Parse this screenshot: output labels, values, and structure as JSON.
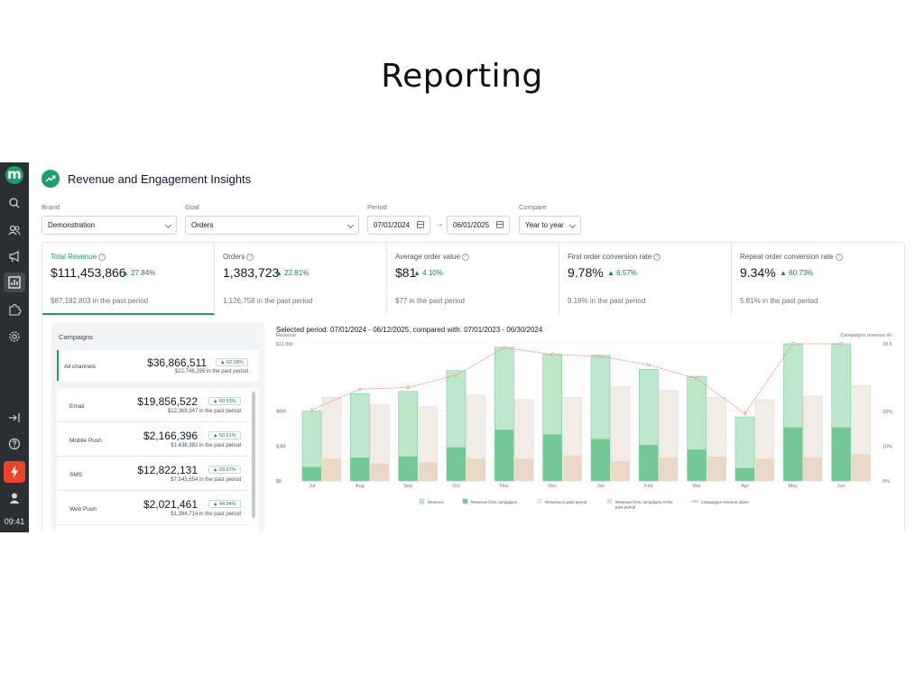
{
  "slide_title": "Reporting",
  "sidebar": {
    "logo": "m",
    "time": "09:41",
    "icons": [
      "search-icon",
      "users-icon",
      "megaphone-icon",
      "reports-icon",
      "puzzle-icon",
      "settings-icon",
      "logout-icon",
      "help-icon",
      "flash-icon",
      "profile-icon"
    ]
  },
  "header": {
    "title": "Revenue and Engagement Insights"
  },
  "filters": {
    "brand_label": "Brand",
    "brand_value": "Demonstration",
    "goal_label": "Goal",
    "goal_value": "Orders",
    "period_label": "Period",
    "period_start": "07/01/2024",
    "period_end": "06/01/2025",
    "compare_label": "Compare",
    "compare_value": "Year to year"
  },
  "kpis": [
    {
      "name": "Total Revenue",
      "value": "$111,453,866",
      "change": "27.84%",
      "past": "$87,182,803 in the past period"
    },
    {
      "name": "Orders",
      "value": "1,383,723",
      "change": "22.81%",
      "past": "1,126,758 in the past period"
    },
    {
      "name": "Average order value",
      "value": "$81",
      "change": "4.10%",
      "past": "$77 in the past period"
    },
    {
      "name": "First order conversion rate",
      "value": "9.78%",
      "change": "6.57%",
      "past": "9.18% in the past period"
    },
    {
      "name": "Repeat order conversion rate",
      "value": "9.34%",
      "change": "60.73%",
      "past": "5.81% in the past period"
    }
  ],
  "campaigns": {
    "title": "Campaigns",
    "all": {
      "name": "All channels",
      "value": "$36,866,511",
      "change": "62.08%",
      "past": "$22,746,295 in the past period"
    },
    "channels": [
      {
        "name": "Email",
        "value": "$19,856,522",
        "change": "60.53%",
        "past": "$12,369,347 in the past period"
      },
      {
        "name": "Mobile Push",
        "value": "$2,166,396",
        "change": "50.61%",
        "past": "$1,438,382 in the past period"
      },
      {
        "name": "SMS",
        "value": "$12,822,131",
        "change": "69.97%",
        "past": "$7,543,654 in the past period"
      },
      {
        "name": "Web Push",
        "value": "$2,021,461",
        "change": "44.94%",
        "past": "$1,394,714 in the past period"
      }
    ]
  },
  "chart": {
    "selected_period": "Selected period: 07/01/2024 - 06/12/2025, compared with: 07/01/2023 - 06/30/2024"
  },
  "colors": {
    "revenue": "#bde8cb",
    "revenue_border": "#7fcf9c",
    "campaigns": "#74c894",
    "past": "#f1ece6",
    "past_border": "#e3d7cb",
    "past_campaigns": "#ead8c6",
    "share_line": "#e0876b",
    "accent": "#1f9d6b"
  },
  "chart_data": {
    "type": "bar",
    "categories": [
      "Jul",
      "Aug",
      "Sep",
      "Oct",
      "Nov",
      "Dec",
      "Jan",
      "Feb",
      "Mar",
      "Apr",
      "May",
      "Jun"
    ],
    "ylabel": "Revenue",
    "y2label": "Campaigns revenue sh",
    "y_ticks": [
      "$0",
      "$3M",
      "$6M",
      "$11.8M"
    ],
    "y_tick_values": [
      0,
      3,
      6,
      11.8
    ],
    "y2_ticks": [
      "0%",
      "10%",
      "20%",
      "39.6"
    ],
    "y2_tick_values": [
      0,
      10,
      20,
      39.6
    ],
    "ylim": [
      0,
      11.8
    ],
    "y2lim": [
      0,
      39.6
    ],
    "series": [
      {
        "name": "Revenue",
        "values": [
          6.0,
          7.5,
          7.7,
          9.5,
          11.5,
          10.9,
          10.8,
          9.6,
          9.0,
          5.5,
          11.8,
          11.8
        ]
      },
      {
        "name": "Revenue from campaigns",
        "values": [
          1.2,
          2.0,
          2.1,
          2.9,
          4.4,
          4.0,
          3.6,
          3.1,
          2.7,
          1.1,
          4.6,
          4.6
        ]
      },
      {
        "name": "Revenue in past period",
        "values": [
          7.2,
          6.6,
          6.4,
          7.4,
          7.0,
          7.2,
          8.1,
          7.8,
          7.2,
          7.0,
          7.3,
          8.2
        ]
      },
      {
        "name": "Revenue from campaigns in the past period",
        "values": [
          1.9,
          1.5,
          1.6,
          1.9,
          1.9,
          2.2,
          1.7,
          2.0,
          2.1,
          1.9,
          2.0,
          2.3
        ]
      },
      {
        "name": "Campaigns revenue share",
        "values": [
          20.5,
          26.5,
          27.0,
          30.5,
          38.5,
          36.5,
          36.0,
          33.5,
          29.5,
          19.5,
          39.6,
          39.6
        ]
      }
    ]
  }
}
